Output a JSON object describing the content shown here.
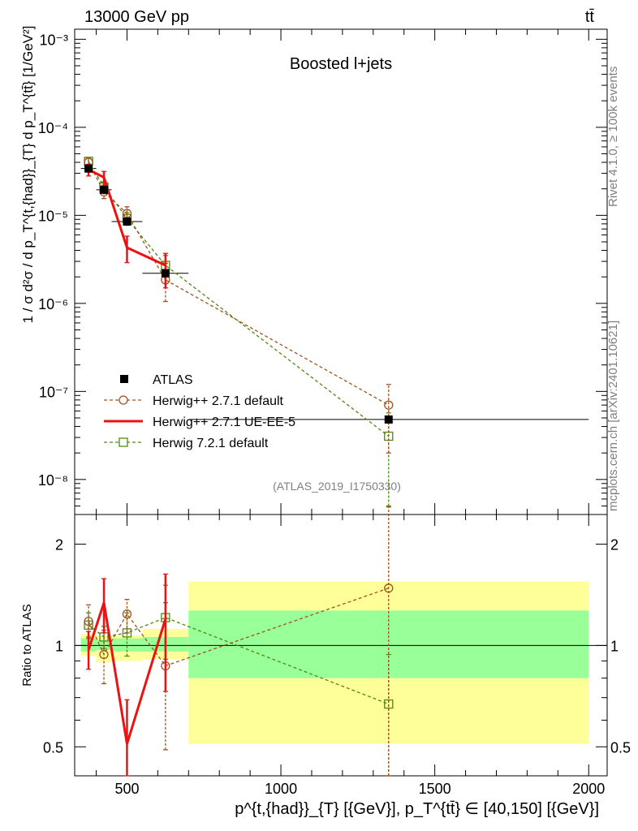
{
  "header": {
    "left": "13000 GeV pp",
    "right": "tt̄"
  },
  "side_labels": {
    "rivet": "Rivet 4.1.0, ≥ 100k events",
    "mcplots": "mcplots.cern.ch [arXiv:2401.10621]"
  },
  "top_panel": {
    "title": "Boosted l+jets",
    "ylabel": "1 / σ d²σ / d p_T^{t,{had}}_{T} d p_T^{tt̄} [1/GeV²]",
    "ytick_labels": [
      "10⁻³",
      "10⁻⁴",
      "10⁻⁵",
      "10⁻⁶",
      "10⁻⁷",
      "10⁻⁸"
    ],
    "watermark": "(ATLAS_2019_I1750330)"
  },
  "bottom_panel": {
    "ylabel": "Ratio to ATLAS",
    "ytick_labels": [
      "2",
      "1",
      "0.5"
    ]
  },
  "xaxis": {
    "label": "p^{t,{had}}_{T} [{GeV}], p_T^{tt̄} ∈ [40,150] [{GeV}]",
    "tick_labels": [
      "500",
      "1000",
      "1500",
      "2000"
    ]
  },
  "legend": [
    {
      "key": "atlas",
      "label": "ATLAS"
    },
    {
      "key": "h271def",
      "label": "Herwig++ 2.7.1 default"
    },
    {
      "key": "h271ue",
      "label": "Herwig++ 2.7.1 UE-EE-5"
    },
    {
      "key": "h721",
      "label": "Herwig 7.2.1 default"
    }
  ],
  "chart_data": [
    {
      "type": "scatter",
      "panel": "main",
      "xlim": [
        330,
        2060
      ],
      "ylim": [
        4e-09,
        0.0013
      ],
      "yscale": "log",
      "series": [
        {
          "name": "ATLAS",
          "color": "#000000",
          "marker": "filled-square",
          "x": [
            375,
            425,
            500,
            625,
            1350
          ],
          "xerr": [
            25,
            25,
            50,
            75,
            650
          ],
          "y": [
            3.4e-05,
            1.95e-05,
            8.5e-06,
            2.2e-06,
            4.8e-08
          ]
        },
        {
          "name": "Herwig++ 2.7.1 default",
          "color": "#a0521e",
          "marker": "open-circle",
          "line": "dashed",
          "x": [
            375,
            425,
            500,
            625,
            1350
          ],
          "y": [
            4e-05,
            1.85e-05,
            1.05e-05,
            1.85e-06,
            7e-08
          ],
          "yerr_lo": [
            4e-06,
            3e-06,
            1.8e-06,
            8e-07,
            5e-08
          ],
          "yerr_hi": [
            5e-06,
            3.5e-06,
            2e-06,
            1e-06,
            5e-08
          ]
        },
        {
          "name": "Herwig++ 2.7.1 UE-EE-5",
          "color": "#ee1111",
          "marker": "none",
          "line": "solid",
          "x": [
            375,
            425,
            500,
            625
          ],
          "y": [
            3.3e-05,
            2.7e-05,
            4.3e-06,
            2.7e-06
          ],
          "yerr_lo": [
            5e-06,
            9e-06,
            1.4e-06,
            1.2e-06
          ],
          "yerr_hi": [
            5e-06,
            4.5e-06,
            1.5e-06,
            1e-06
          ]
        },
        {
          "name": "Herwig 7.2.1 default",
          "color": "#4c8a10",
          "marker": "open-square",
          "line": "dashed",
          "x": [
            375,
            425,
            500,
            625,
            1350
          ],
          "y": [
            4.1e-05,
            2.1e-05,
            9.2e-06,
            2.7e-06,
            3.1e-08
          ],
          "yerr_lo": [
            4e-06,
            3e-06,
            1.5e-06,
            7e-07,
            2.6e-08
          ],
          "yerr_hi": [
            4e-06,
            3e-06,
            1.5e-06,
            8e-07,
            2.6e-08
          ]
        }
      ]
    },
    {
      "type": "scatter",
      "panel": "ratio",
      "xlim": [
        330,
        2060
      ],
      "ylim": [
        0.41,
        2.45
      ],
      "yscale": "log",
      "bands": {
        "x_edges": [
          350,
          400,
          450,
          550,
          700,
          2000
        ],
        "stat_lo": [
          0.96,
          0.97,
          0.96,
          0.96,
          0.8
        ],
        "stat_hi": [
          1.05,
          1.04,
          1.05,
          1.06,
          1.27
        ],
        "total_lo": [
          0.93,
          0.89,
          0.9,
          0.91,
          0.51
        ],
        "total_hi": [
          1.08,
          1.07,
          1.07,
          1.12,
          1.55
        ],
        "stat_color": "#99ff99",
        "total_color": "#ffff99"
      },
      "series": [
        {
          "name": "Herwig++ 2.7.1 default",
          "color": "#a0521e",
          "marker": "open-circle",
          "line": "dashed",
          "x": [
            375,
            425,
            500,
            625,
            1350
          ],
          "y": [
            1.18,
            0.94,
            1.24,
            0.87,
            1.48
          ],
          "yerr_lo": [
            0.12,
            0.17,
            0.15,
            0.38,
            1.1
          ],
          "yerr_hi": [
            0.14,
            0.17,
            0.13,
            0.47,
            1.1
          ]
        },
        {
          "name": "Herwig++ 2.7.1 UE-EE-5",
          "color": "#ee1111",
          "marker": "none",
          "line": "solid",
          "x": [
            375,
            425,
            500,
            625
          ],
          "y": [
            0.97,
            1.34,
            0.51,
            1.2
          ],
          "yerr_lo": [
            0.12,
            0.25,
            0.13,
            0.47
          ],
          "yerr_hi": [
            0.13,
            0.24,
            0.18,
            0.43
          ]
        },
        {
          "name": "Herwig 7.2.1 default",
          "color": "#4c8a10",
          "marker": "open-square",
          "line": "dashed",
          "x": [
            375,
            425,
            500,
            625,
            1350
          ],
          "y": [
            1.15,
            1.06,
            1.09,
            1.21,
            0.67
          ],
          "yerr_lo": [
            0.1,
            0.08,
            0.16,
            0.3,
            0.27
          ],
          "yerr_hi": [
            0.1,
            0.08,
            0.16,
            0.3,
            0.27
          ]
        }
      ]
    }
  ]
}
